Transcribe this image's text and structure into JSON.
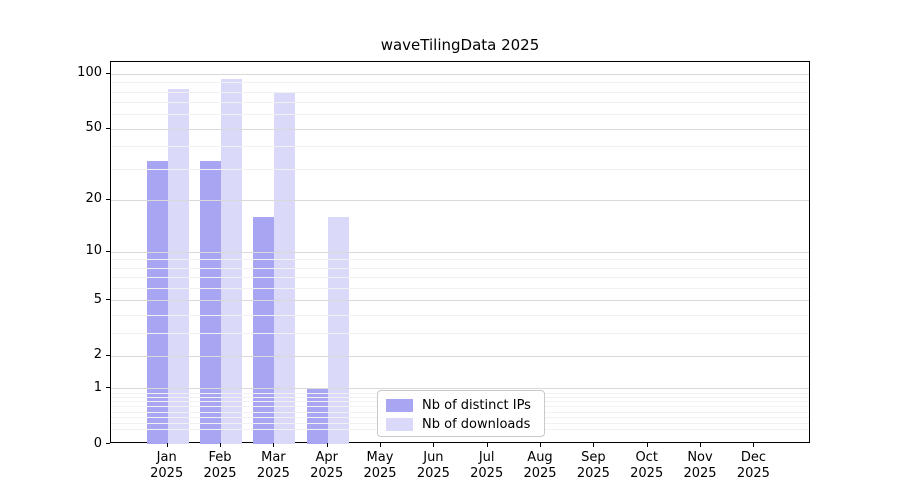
{
  "figure": {
    "background": "#ffffff",
    "spine_color": "#000000",
    "text_color": "#000000"
  },
  "chart_data": {
    "type": "bar",
    "title": "waveTilingData 2025",
    "x": {
      "categories": [
        "Jan",
        "Feb",
        "Mar",
        "Apr",
        "May",
        "Jun",
        "Jul",
        "Aug",
        "Sep",
        "Oct",
        "Nov",
        "Dec"
      ],
      "year_line": "2025"
    },
    "series": [
      {
        "name": "Nb of distinct IPs",
        "color": "#a8a6f3",
        "values": [
          33,
          33,
          16,
          1,
          0,
          0,
          0,
          0,
          0,
          0,
          0,
          0
        ]
      },
      {
        "name": "Nb of downloads",
        "color": "#dad9fa",
        "values": [
          83,
          94,
          79,
          16,
          0,
          0,
          0,
          0,
          0,
          0,
          0,
          0
        ]
      }
    ],
    "y_axis": {
      "scale": "log1p",
      "major_ticks": [
        0,
        1,
        2,
        5,
        10,
        20,
        50,
        100
      ],
      "minor_ticks": [
        0.2,
        0.3,
        0.4,
        0.5,
        0.6,
        0.7,
        0.8,
        0.9,
        3,
        4,
        6,
        7,
        8,
        9,
        30,
        40,
        60,
        70,
        80,
        90
      ],
      "top_value": 116
    },
    "grid": {
      "major_color": "#d9d9d9",
      "minor_color": "#f1f1f1"
    },
    "legend": {
      "position": "lower-center"
    }
  }
}
